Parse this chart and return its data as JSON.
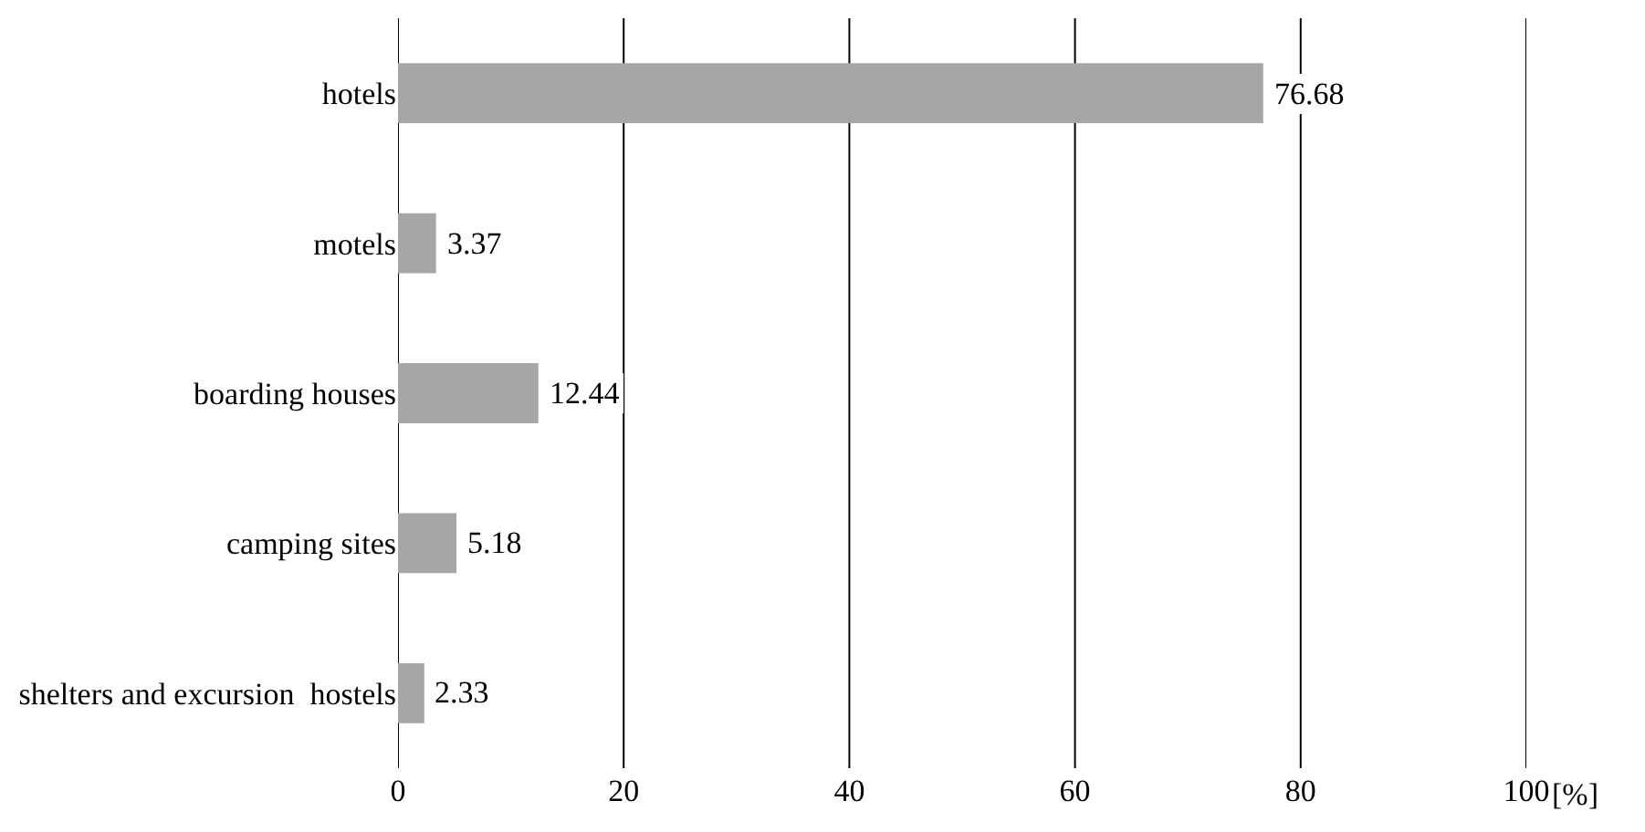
{
  "chart_data": {
    "type": "bar",
    "orientation": "horizontal",
    "categories": [
      "hotels",
      "motels",
      "boarding houses",
      "camping sites",
      "shelters and excursion  hostels"
    ],
    "values": [
      76.68,
      3.37,
      12.44,
      5.18,
      2.33
    ],
    "color": "#a6a6a6",
    "data_labels": true,
    "xlabel": "[%]",
    "xlim": [
      0,
      100
    ],
    "xticks": [
      0,
      20,
      40,
      60,
      80,
      100
    ],
    "grid": "x"
  }
}
